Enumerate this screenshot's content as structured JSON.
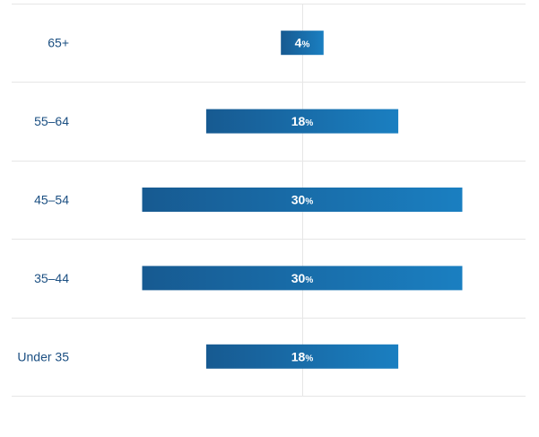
{
  "chart_data": {
    "type": "bar",
    "orientation": "horizontal-centered",
    "categories": [
      "65+",
      "55–64",
      "45–54",
      "35–44",
      "Under 35"
    ],
    "values": [
      4,
      18,
      30,
      30,
      18
    ],
    "value_suffix": "%",
    "xlim": [
      0,
      30
    ],
    "grid": true,
    "title": "",
    "xlabel": "",
    "ylabel": ""
  },
  "colors": {
    "bar_start": "#175a91",
    "bar_end": "#1a7fc1",
    "label": "#1b4f82",
    "grid": "#e6e6e6"
  }
}
